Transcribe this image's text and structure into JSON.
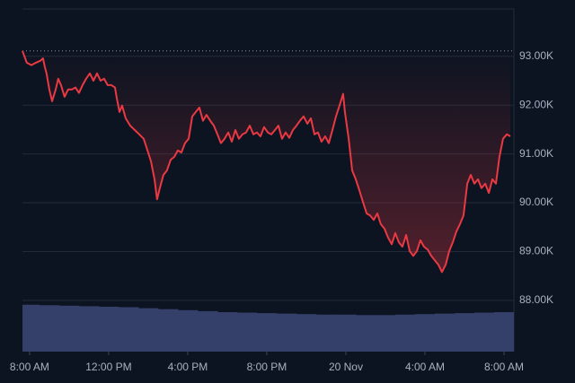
{
  "chart_data": {
    "type": "line",
    "x": [
      -0.36,
      -0.14,
      0.09,
      0.32,
      0.55,
      0.68,
      0.77,
      0.86,
      1.0,
      1.14,
      1.32,
      1.45,
      1.59,
      1.77,
      1.95,
      2.14,
      2.32,
      2.5,
      2.68,
      2.86,
      3.05,
      3.23,
      3.41,
      3.59,
      3.77,
      3.95,
      4.14,
      4.32,
      4.41,
      4.55,
      4.68,
      4.86,
      5.09,
      5.32,
      5.55,
      5.77,
      6.0,
      6.14,
      6.32,
      6.45,
      6.59,
      6.77,
      6.95,
      7.14,
      7.32,
      7.5,
      7.68,
      7.86,
      8.05,
      8.23,
      8.41,
      8.59,
      8.77,
      8.95,
      9.14,
      9.32,
      9.5,
      9.68,
      9.86,
      10.05,
      10.23,
      10.41,
      10.59,
      10.77,
      10.95,
      11.14,
      11.32,
      11.5,
      11.68,
      11.86,
      12.05,
      12.23,
      12.41,
      12.59,
      12.77,
      12.95,
      13.14,
      13.32,
      13.5,
      13.68,
      13.86,
      14.05,
      14.23,
      14.41,
      14.59,
      14.77,
      14.95,
      15.14,
      15.32,
      15.5,
      15.68,
      15.86,
      15.95,
      16.14,
      16.32,
      16.5,
      16.68,
      16.86,
      17.05,
      17.23,
      17.41,
      17.59,
      17.77,
      17.95,
      18.14,
      18.32,
      18.5,
      18.68,
      18.86,
      19.05,
      19.23,
      19.41,
      19.59,
      19.77,
      19.95,
      20.14,
      20.32,
      20.5,
      20.68,
      20.86,
      21.05,
      21.23,
      21.41,
      21.59,
      21.77,
      21.95,
      22.14,
      22.32,
      22.5,
      22.68,
      22.86,
      23.05,
      23.23,
      23.41,
      23.59,
      23.77,
      23.95,
      24.14,
      24.32
    ],
    "series": [
      {
        "color": "#ea3943",
        "values": [
          93110,
          92870,
          92820,
          92870,
          92910,
          92960,
          92780,
          92650,
          92320,
          92080,
          92320,
          92540,
          92410,
          92170,
          92320,
          92320,
          92360,
          92250,
          92410,
          92540,
          92650,
          92500,
          92650,
          92500,
          92540,
          92410,
          92410,
          92360,
          92140,
          91860,
          91990,
          91730,
          91580,
          91490,
          91400,
          91310,
          91030,
          90850,
          90480,
          90070,
          90300,
          90570,
          90660,
          90880,
          90940,
          91070,
          91030,
          91220,
          91310,
          91770,
          91860,
          91950,
          91680,
          91800,
          91680,
          91580,
          91400,
          91220,
          91310,
          91440,
          91250,
          91490,
          91310,
          91400,
          91440,
          91580,
          91400,
          91440,
          91360,
          91550,
          91440,
          91400,
          91490,
          91580,
          91310,
          91440,
          91330,
          91490,
          91580,
          91680,
          91770,
          91620,
          91730,
          91400,
          91440,
          91250,
          91360,
          91220,
          91490,
          91770,
          91990,
          92230,
          91860,
          91310,
          90660,
          90480,
          90260,
          90020,
          89780,
          89740,
          89650,
          89780,
          89560,
          89470,
          89280,
          89150,
          89380,
          89190,
          89100,
          89340,
          89010,
          88910,
          89010,
          89230,
          89100,
          89040,
          88910,
          88820,
          88730,
          88580,
          88730,
          89010,
          89190,
          89410,
          89560,
          89740,
          90390,
          90570,
          90390,
          90480,
          90300,
          90390,
          90200,
          90480,
          90390,
          90940,
          91310,
          91400,
          91360
        ]
      }
    ],
    "reference_line": 93110,
    "xlim": [
      -0.36,
      24.5
    ],
    "xticks": [
      {
        "value": 0,
        "label": "8:00 AM"
      },
      {
        "value": 4,
        "label": "12:00 PM"
      },
      {
        "value": 8,
        "label": "4:00 PM"
      },
      {
        "value": 12,
        "label": "8:00 PM"
      },
      {
        "value": 16,
        "label": "20 Nov"
      },
      {
        "value": 20,
        "label": "4:00 AM"
      },
      {
        "value": 24,
        "label": "8:00 AM"
      }
    ],
    "ylim": [
      86950,
      93970
    ],
    "yticks": [
      {
        "value": 88000,
        "label": "88.00K"
      },
      {
        "value": 89000,
        "label": "89.00K"
      },
      {
        "value": 90000,
        "label": "90.00K"
      },
      {
        "value": 91000,
        "label": "91.00K"
      },
      {
        "value": 92000,
        "label": "92.00K"
      },
      {
        "value": 93000,
        "label": "93.00K"
      }
    ],
    "grid": true,
    "volume": {
      "color": "#35406a",
      "ylim": [
        0,
        100
      ],
      "x": [
        0,
        1,
        2,
        3,
        4,
        5,
        6,
        7,
        8,
        9,
        10,
        11,
        12,
        13,
        14,
        15,
        16,
        17,
        18,
        19,
        20,
        21,
        22,
        23,
        24
      ],
      "values": [
        95,
        94,
        93,
        92,
        91,
        90,
        88,
        86,
        84,
        82,
        80,
        79,
        78,
        77,
        76,
        75,
        75,
        74,
        74,
        75,
        76,
        77,
        78,
        79,
        80
      ]
    }
  }
}
